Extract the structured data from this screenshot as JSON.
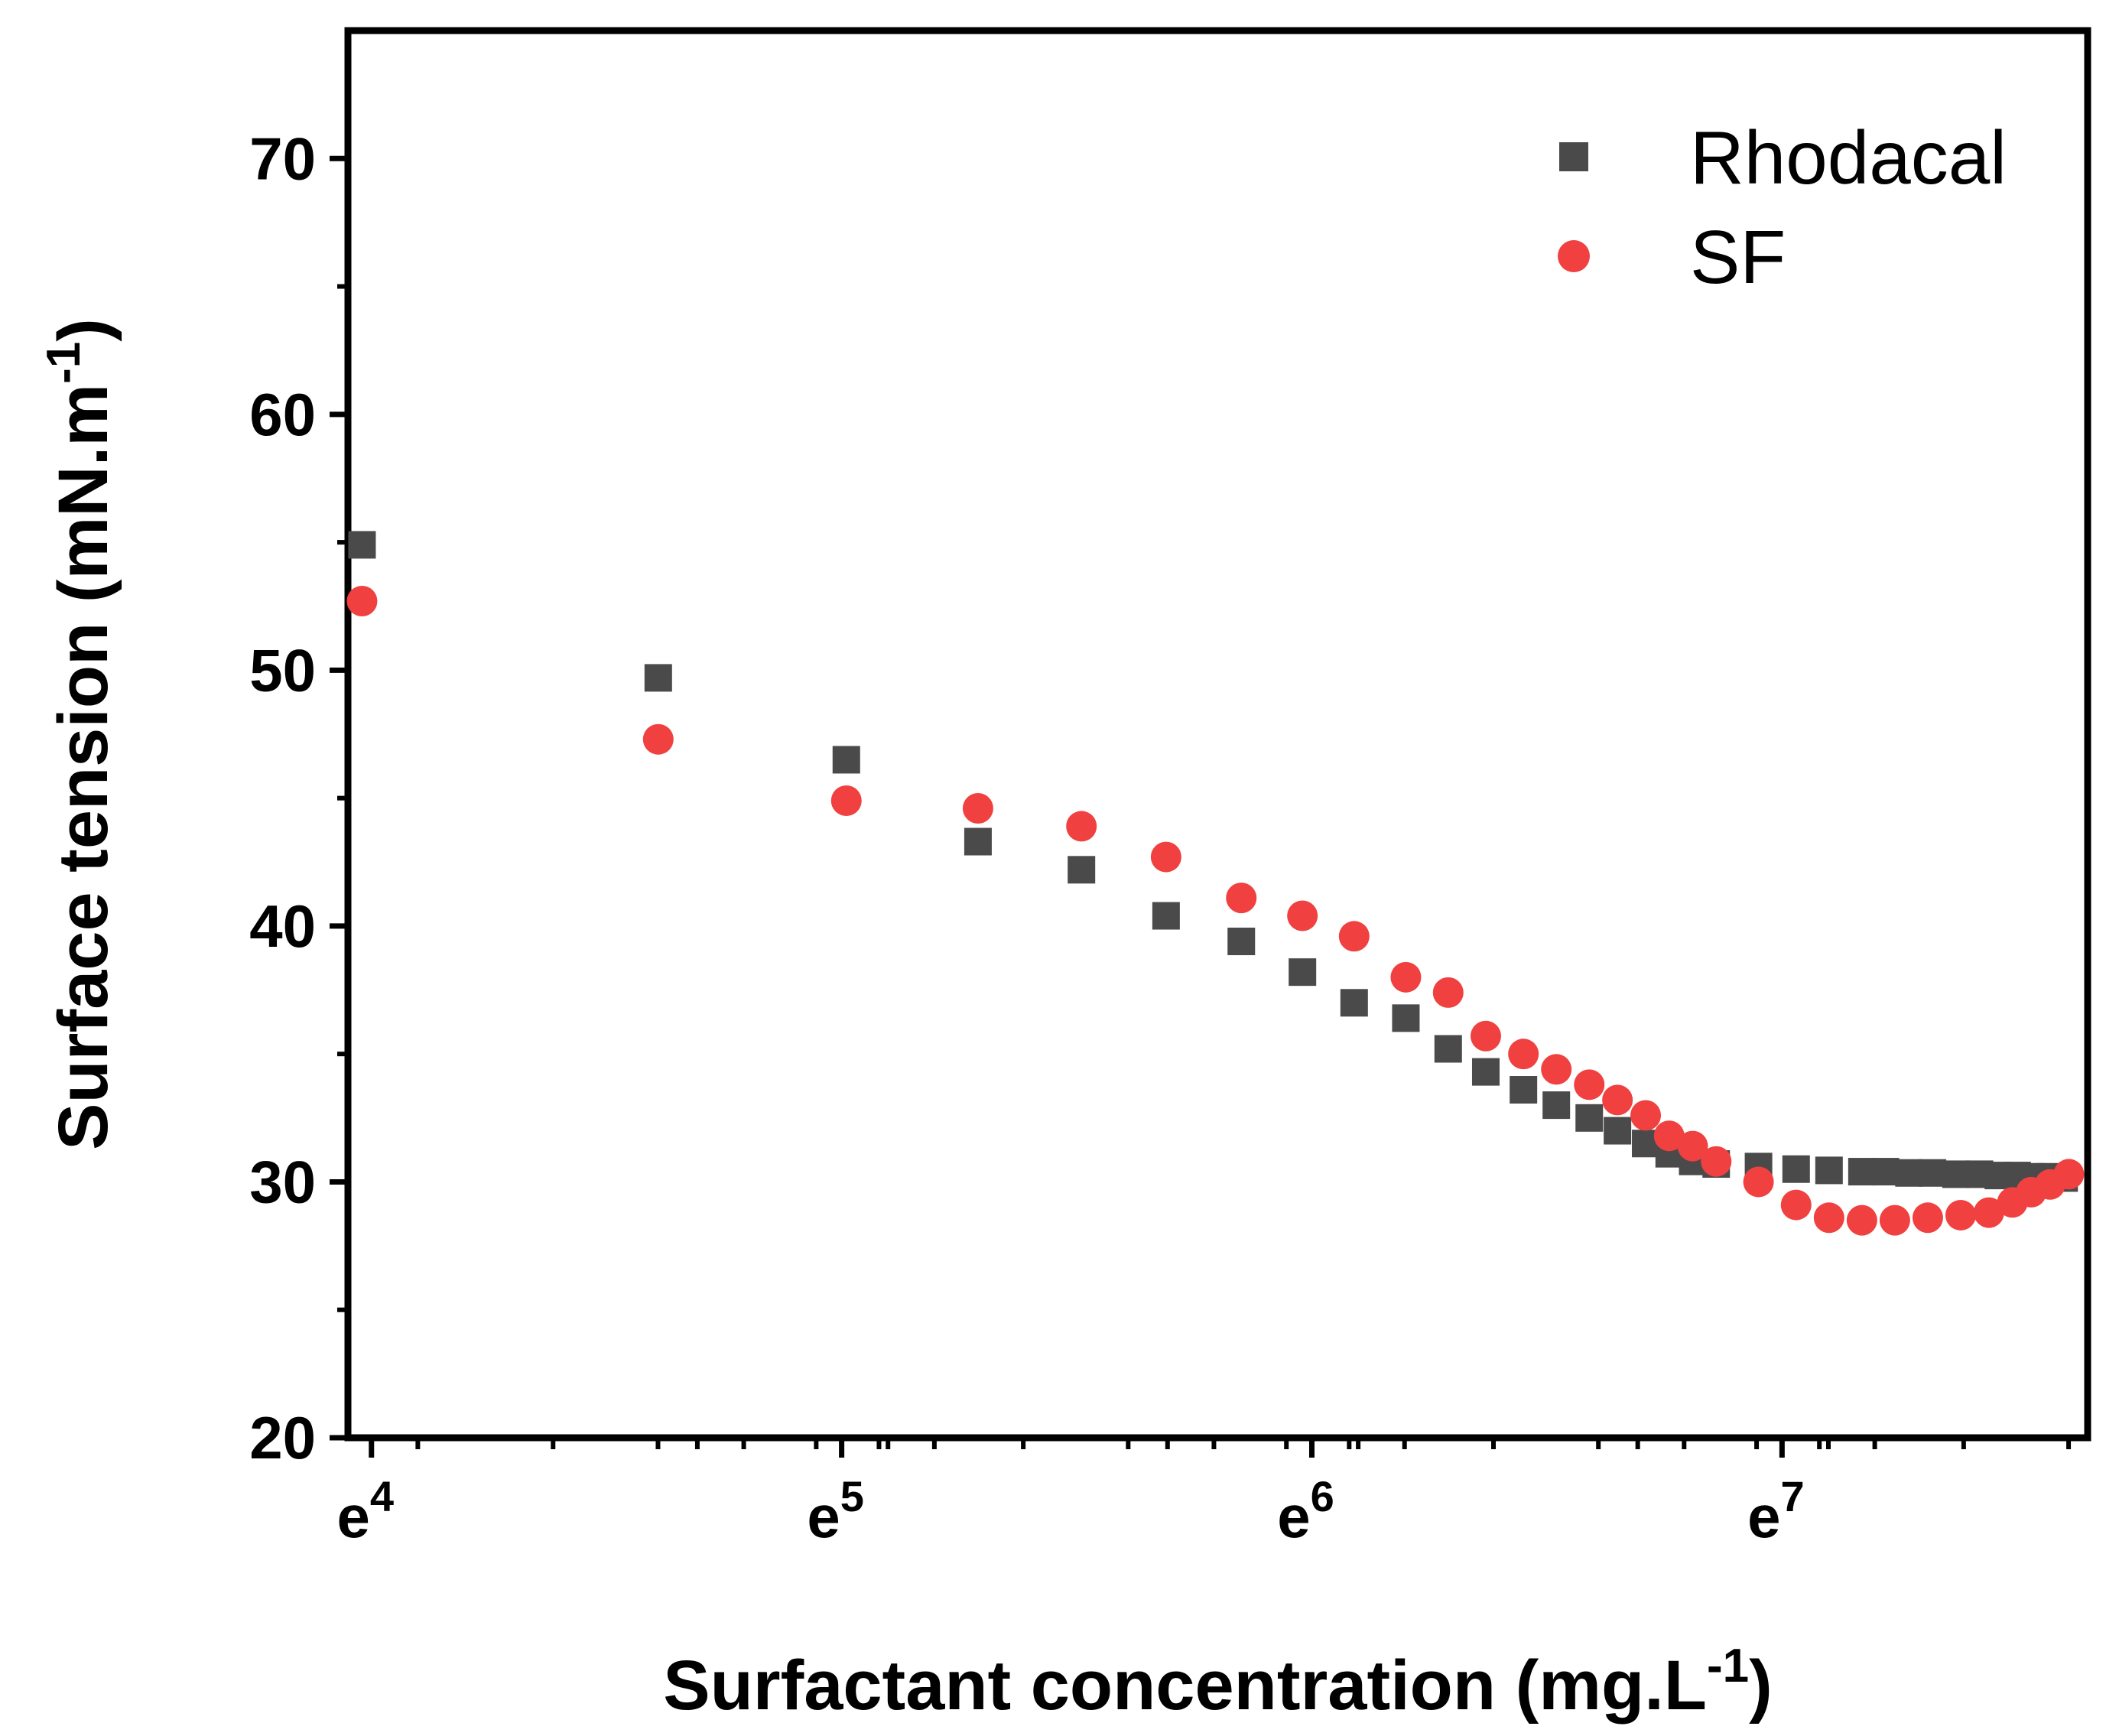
{
  "chart_data": {
    "type": "scatter",
    "title": "",
    "xlabel": "Surfactant concentration (mg.L",
    "xlabel_sup": "-1",
    "xlabel_end": ")",
    "ylabel": "Surface tension (mN.m",
    "ylabel_sup": "-1",
    "ylabel_end": ")",
    "xscale": "log-e",
    "xlim": [
      3.95,
      7.65
    ],
    "ylim": [
      20,
      75
    ],
    "x_ticks": [
      {
        "value": 4,
        "base": "e",
        "exp": "4"
      },
      {
        "value": 5,
        "base": "e",
        "exp": "5"
      },
      {
        "value": 6,
        "base": "e",
        "exp": "6"
      },
      {
        "value": 7,
        "base": "e",
        "exp": "7"
      }
    ],
    "y_ticks": [
      {
        "value": 20,
        "label": "20"
      },
      {
        "value": 30,
        "label": "30"
      },
      {
        "value": 40,
        "label": "40"
      },
      {
        "value": 50,
        "label": "50"
      },
      {
        "value": 60,
        "label": "60"
      },
      {
        "value": 70,
        "label": "70"
      }
    ],
    "y_minor_ticks": [
      25,
      35,
      45,
      55,
      65
    ],
    "grid": false,
    "legend_position": "top-right",
    "series": [
      {
        "name": "Rhodacal",
        "marker": "square",
        "color": "#4a4a4a",
        "points": [
          [
            3.98,
            54.9
          ],
          [
            4.61,
            49.7
          ],
          [
            5.01,
            46.5
          ],
          [
            5.29,
            43.3
          ],
          [
            5.51,
            42.2
          ],
          [
            5.69,
            40.4
          ],
          [
            5.85,
            39.4
          ],
          [
            5.98,
            38.2
          ],
          [
            6.09,
            37.0
          ],
          [
            6.2,
            36.4
          ],
          [
            6.29,
            35.2
          ],
          [
            6.37,
            34.3
          ],
          [
            6.45,
            33.6
          ],
          [
            6.52,
            33.0
          ],
          [
            6.59,
            32.5
          ],
          [
            6.65,
            32.0
          ],
          [
            6.71,
            31.5
          ],
          [
            6.76,
            31.1
          ],
          [
            6.81,
            30.8
          ],
          [
            6.86,
            30.7
          ],
          [
            6.95,
            30.6
          ],
          [
            7.03,
            30.5
          ],
          [
            7.1,
            30.45
          ],
          [
            7.17,
            30.4
          ],
          [
            7.22,
            30.4
          ],
          [
            7.27,
            30.35
          ],
          [
            7.32,
            30.35
          ],
          [
            7.37,
            30.3
          ],
          [
            7.42,
            30.3
          ],
          [
            7.46,
            30.25
          ],
          [
            7.5,
            30.25
          ],
          [
            7.53,
            30.2
          ],
          [
            7.57,
            30.2
          ],
          [
            7.6,
            30.15
          ]
        ]
      },
      {
        "name": "SF",
        "marker": "circle",
        "color": "#f04040",
        "points": [
          [
            3.98,
            52.7
          ],
          [
            4.61,
            47.3
          ],
          [
            5.01,
            44.9
          ],
          [
            5.29,
            44.6
          ],
          [
            5.51,
            43.9
          ],
          [
            5.69,
            42.7
          ],
          [
            5.85,
            41.1
          ],
          [
            5.98,
            40.4
          ],
          [
            6.09,
            39.6
          ],
          [
            6.2,
            38.0
          ],
          [
            6.29,
            37.4
          ],
          [
            6.37,
            35.7
          ],
          [
            6.45,
            35.0
          ],
          [
            6.52,
            34.4
          ],
          [
            6.59,
            33.8
          ],
          [
            6.65,
            33.2
          ],
          [
            6.71,
            32.6
          ],
          [
            6.76,
            31.8
          ],
          [
            6.81,
            31.4
          ],
          [
            6.86,
            30.8
          ],
          [
            6.95,
            30.0
          ],
          [
            7.03,
            29.1
          ],
          [
            7.1,
            28.6
          ],
          [
            7.17,
            28.5
          ],
          [
            7.24,
            28.5
          ],
          [
            7.31,
            28.6
          ],
          [
            7.38,
            28.7
          ],
          [
            7.44,
            28.8
          ],
          [
            7.49,
            29.2
          ],
          [
            7.53,
            29.6
          ],
          [
            7.57,
            29.9
          ],
          [
            7.61,
            30.3
          ]
        ]
      }
    ]
  }
}
